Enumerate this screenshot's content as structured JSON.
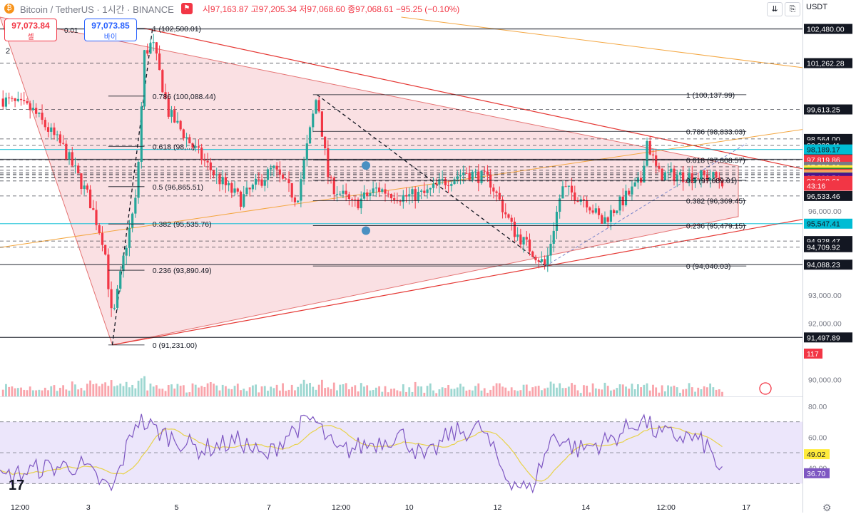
{
  "header": {
    "symbol": "Bitcoin / TetherUS · 1시간 · BINANCE",
    "ohlc": "시97,163.87 고97,205.34 저97,068.60 종97,068.61 −95.25 (−0.10%)",
    "currency": "USDT"
  },
  "trade": {
    "sell_value": "97,073.84",
    "sell_label": "셀",
    "buy_value": "97,073.85",
    "buy_label": "바이",
    "spread": "0.01",
    "lots": "2"
  },
  "colors": {
    "up": "#26a69a",
    "down": "#f23645",
    "triangle_fill": "#f9d8dc",
    "rsi_band": "#ece6fb",
    "rsi_line": "#7e57c2",
    "rsi_ma": "#e8d24a"
  },
  "chart_data": [
    {
      "type": "candlestick",
      "title": "Bitcoin / TetherUS · 1시간 · BINANCE",
      "x_tick_labels": [
        "12:00",
        "3",
        "5",
        "7",
        "12:00",
        "10",
        "12",
        "14",
        "12:00",
        "17"
      ],
      "y_tick_labels": [
        "96,000.00",
        "93,000.00",
        "92,000.00",
        "90,000.00"
      ],
      "ylim": [
        89400,
        102900
      ],
      "grid": false,
      "price_path": [
        [
          0,
          100000
        ],
        [
          0.04,
          99600
        ],
        [
          0.08,
          98200
        ],
        [
          0.11,
          96500
        ],
        [
          0.13,
          94800
        ],
        [
          0.14,
          92000
        ],
        [
          0.155,
          94500
        ],
        [
          0.17,
          96500
        ],
        [
          0.18,
          101600
        ],
        [
          0.19,
          102000
        ],
        [
          0.21,
          99500
        ],
        [
          0.24,
          98300
        ],
        [
          0.27,
          97200
        ],
        [
          0.3,
          96400
        ],
        [
          0.34,
          97500
        ],
        [
          0.37,
          96400
        ],
        [
          0.395,
          100137.99
        ],
        [
          0.41,
          97000
        ],
        [
          0.44,
          96200
        ],
        [
          0.47,
          96800
        ],
        [
          0.5,
          96500
        ],
        [
          0.53,
          96600
        ],
        [
          0.55,
          97000
        ],
        [
          0.58,
          97400
        ],
        [
          0.61,
          97100
        ],
        [
          0.64,
          95300
        ],
        [
          0.68,
          94040.03
        ],
        [
          0.7,
          96800
        ],
        [
          0.73,
          96400
        ],
        [
          0.75,
          95600
        ],
        [
          0.78,
          96500
        ],
        [
          0.8,
          97100
        ],
        [
          0.805,
          98600
        ],
        [
          0.82,
          97300
        ],
        [
          0.86,
          97250
        ],
        [
          0.89,
          97200
        ],
        [
          0.9,
          97068.61
        ]
      ],
      "volume_label": "117",
      "price_levels": [
        {
          "label": "102,480.00",
          "value": 102480,
          "color": "#131722"
        },
        {
          "label": "101,262.28",
          "value": 101262.28,
          "color": "#131722"
        },
        {
          "label": "99,613.25",
          "value": 99613.25,
          "color": "#131722"
        },
        {
          "label": "98,564.00",
          "value": 98564,
          "color": "#131722"
        },
        {
          "label": "98,332.41",
          "value": 98332.41,
          "color": "#131722"
        },
        {
          "label": "98,189.17",
          "value": 98189.17,
          "color": "#00bcd4"
        },
        {
          "label": "97,836.00",
          "value": 97836,
          "color": "#131722"
        },
        {
          "label": "97,819.86",
          "value": 97819.86,
          "color": "#f23645"
        },
        {
          "label": "97,573.20",
          "value": 97573.2,
          "color": "#787b86"
        },
        {
          "label": "97,448.73",
          "value": 97448.73,
          "color": "#ffeb3b"
        },
        {
          "label": "97,360.36",
          "value": 97360.36,
          "color": "#2e7d32"
        },
        {
          "label": "97,314.78",
          "value": 97314.78,
          "color": "#f23645"
        },
        {
          "label": "97,286.06",
          "value": 97286.06,
          "color": "#f7a35c"
        },
        {
          "label": "97,192.87",
          "value": 97192.87,
          "color": "#089981"
        },
        {
          "label": "97,180.54",
          "value": 97180.54,
          "color": "#4a148c"
        },
        {
          "label": "97,068.61",
          "value": 97068.61,
          "color": "#f23645"
        },
        {
          "label": "43:16",
          "value": 96900,
          "color": "#f23645"
        },
        {
          "label": "96,533.46",
          "value": 96533.46,
          "color": "#131722"
        },
        {
          "label": "95,547.41",
          "value": 95547.41,
          "color": "#00bcd4"
        },
        {
          "label": "94,928.47",
          "value": 94928.47,
          "color": "#131722"
        },
        {
          "label": "94,709.92",
          "value": 94709.92,
          "color": "#131722"
        },
        {
          "label": "94,088.23",
          "value": 94088.23,
          "color": "#131722"
        },
        {
          "label": "91,497.89",
          "value": 91497.89,
          "color": "#131722"
        }
      ],
      "fib_left": [
        {
          "label": "1 (102,500.01)",
          "value": 102500.01
        },
        {
          "label": "0.786 (100,088.44)",
          "value": 100088.44
        },
        {
          "label": "0.618 (98,...)",
          "value": 98300
        },
        {
          "label": "0.5 (96,865.51)",
          "value": 96865.51
        },
        {
          "label": "0.382 (95,535.76)",
          "value": 95535.76
        },
        {
          "label": "0.236 (93,890.49)",
          "value": 93890.49
        },
        {
          "label": "0 (91,231.00)",
          "value": 91231
        }
      ],
      "fib_right": [
        {
          "label": "1 (100,137.99)",
          "value": 100137.99
        },
        {
          "label": "0.786 (98,833.03)",
          "value": 98833.03
        },
        {
          "label": "0.618 (97,808.57)",
          "value": 97808.57
        },
        {
          "label": "0.5 (97,089.01)",
          "value": 97089.01
        },
        {
          "label": "0.382 (96,369.45)",
          "value": 96369.45
        },
        {
          "label": "0.236 (95,479.15)",
          "value": 95479.15
        },
        {
          "label": "0 (94,040.03)",
          "value": 94040.03
        }
      ]
    },
    {
      "type": "line",
      "title": "RSI",
      "y_tick_labels": [
        "80.00",
        "60.00",
        "40.00"
      ],
      "current_labels": [
        {
          "label": "49.02",
          "value": 49.02,
          "color": "#ffeb3b"
        },
        {
          "label": "36.70",
          "value": 36.7,
          "color": "#7e57c2"
        }
      ],
      "ylim": [
        20,
        80
      ],
      "bands": [
        70,
        50,
        30
      ],
      "rsi_path": [
        [
          0,
          33
        ],
        [
          0.05,
          40
        ],
        [
          0.1,
          42
        ],
        [
          0.14,
          25
        ],
        [
          0.17,
          72
        ],
        [
          0.2,
          63
        ],
        [
          0.25,
          52
        ],
        [
          0.3,
          58
        ],
        [
          0.33,
          46
        ],
        [
          0.36,
          63
        ],
        [
          0.39,
          72
        ],
        [
          0.42,
          50
        ],
        [
          0.47,
          57
        ],
        [
          0.5,
          62
        ],
        [
          0.53,
          45
        ],
        [
          0.56,
          62
        ],
        [
          0.6,
          66
        ],
        [
          0.63,
          35
        ],
        [
          0.66,
          25
        ],
        [
          0.69,
          62
        ],
        [
          0.72,
          52
        ],
        [
          0.76,
          58
        ],
        [
          0.8,
          72
        ],
        [
          0.82,
          62
        ],
        [
          0.86,
          60
        ],
        [
          0.88,
          55
        ],
        [
          0.9,
          36.7
        ]
      ]
    }
  ]
}
